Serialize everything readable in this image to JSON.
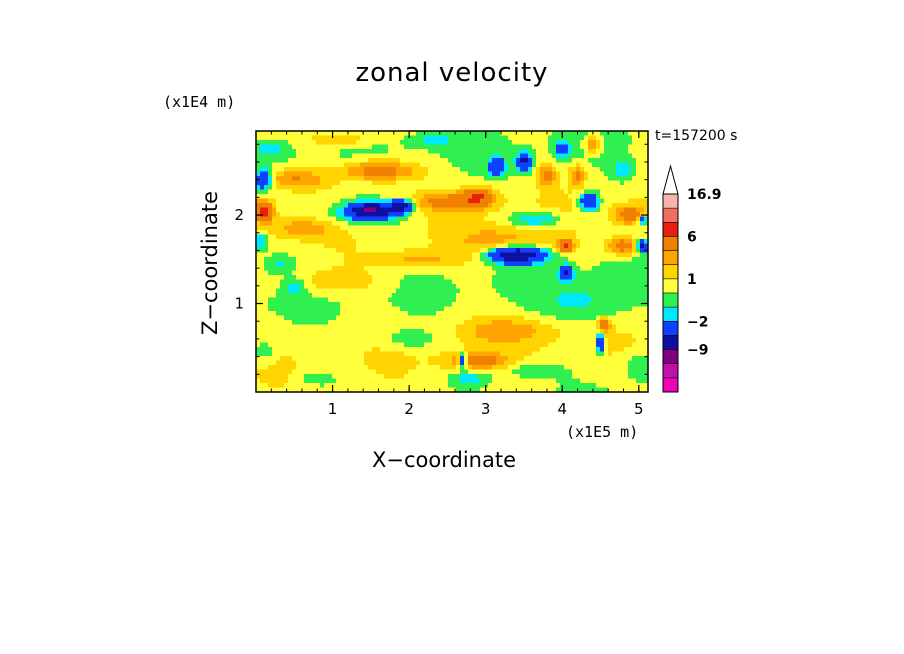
{
  "chart_data": {
    "type": "heatmap",
    "title": "zonal velocity",
    "xlabel": "X−coordinate",
    "ylabel": "Z−coordinate",
    "x_multiplier": "(x1E5 m)",
    "y_multiplier": "(x1E4 m)",
    "time_label": "t=157200 s",
    "xlim": [
      0,
      5.12
    ],
    "ylim": [
      0,
      2.95
    ],
    "x_ticks": [
      "1",
      "2",
      "3",
      "4",
      "5"
    ],
    "y_ticks": [
      "1",
      "2"
    ],
    "colorbar": {
      "max_label": "16.9",
      "tick_labels": [
        "16.9",
        "6",
        "1",
        "−2",
        "−9"
      ],
      "levels": [
        {
          "min": 12,
          "max": 16.9,
          "color": "#f8b4a8"
        },
        {
          "min": 9,
          "max": 12,
          "color": "#f07060"
        },
        {
          "min": 6,
          "max": 9,
          "color": "#e81e0e"
        },
        {
          "min": 3,
          "max": 6,
          "color": "#f08000"
        },
        {
          "min": 2,
          "max": 3,
          "color": "#ffa400"
        },
        {
          "min": 1,
          "max": 2,
          "color": "#ffd400"
        },
        {
          "min": 0,
          "max": 1,
          "color": "#ffff3c"
        },
        {
          "min": -1,
          "max": 0,
          "color": "#2ff050"
        },
        {
          "min": -2,
          "max": -1,
          "color": "#00e8ff"
        },
        {
          "min": -5,
          "max": -2,
          "color": "#1040ff"
        },
        {
          "min": -9,
          "max": -5,
          "color": "#1010a0"
        },
        {
          "min": -12,
          "max": -9,
          "color": "#800080"
        },
        {
          "min": -15,
          "max": -12,
          "color": "#c010b0"
        },
        {
          "min": -18,
          "max": -15,
          "color": "#f000b8"
        }
      ]
    },
    "field_features": [
      {
        "x": 0.1,
        "z": 2.05,
        "value": 7,
        "sx": 0.12,
        "sz": 0.12
      },
      {
        "x": 0.5,
        "z": 2.4,
        "value": 3,
        "sx": 0.45,
        "sz": 0.12
      },
      {
        "x": 1.6,
        "z": 2.5,
        "value": 4,
        "sx": 0.5,
        "sz": 0.12
      },
      {
        "x": 2.5,
        "z": 2.15,
        "value": 3,
        "sx": 0.5,
        "sz": 0.1
      },
      {
        "x": 0.6,
        "z": 1.85,
        "value": 2,
        "sx": 0.4,
        "sz": 0.1
      },
      {
        "x": 1.5,
        "z": 2.05,
        "value": -9,
        "sx": 0.28,
        "sz": 0.08
      },
      {
        "x": 1.9,
        "z": 2.1,
        "value": -7,
        "sx": 0.15,
        "sz": 0.07
      },
      {
        "x": 1.4,
        "z": 2.0,
        "value": -2,
        "sx": 0.55,
        "sz": 0.15
      },
      {
        "x": 0.1,
        "z": 2.4,
        "value": -6,
        "sx": 0.1,
        "sz": 0.1
      },
      {
        "x": 0.05,
        "z": 1.7,
        "value": -3,
        "sx": 0.1,
        "sz": 0.1
      },
      {
        "x": 0.5,
        "z": 1.2,
        "value": -2,
        "sx": 0.15,
        "sz": 0.1
      },
      {
        "x": 0.3,
        "z": 1.45,
        "value": -1.5,
        "sx": 0.2,
        "sz": 0.12
      },
      {
        "x": 0.2,
        "z": 2.75,
        "value": -1.5,
        "sx": 0.25,
        "sz": 0.1
      },
      {
        "x": 2.3,
        "z": 2.85,
        "value": -1.5,
        "sx": 0.3,
        "sz": 0.08
      },
      {
        "x": 1.1,
        "z": 2.85,
        "value": 2,
        "sx": 0.35,
        "sz": 0.08
      },
      {
        "x": 3.4,
        "z": 1.55,
        "value": -9,
        "sx": 0.35,
        "sz": 0.09
      },
      {
        "x": 3.2,
        "z": 1.7,
        "value": 2,
        "sx": 0.6,
        "sz": 0.18
      },
      {
        "x": 3.5,
        "z": 2.6,
        "value": -6,
        "sx": 0.1,
        "sz": 0.1
      },
      {
        "x": 3.15,
        "z": 2.55,
        "value": -5,
        "sx": 0.1,
        "sz": 0.1
      },
      {
        "x": 3.8,
        "z": 2.45,
        "value": 3,
        "sx": 0.12,
        "sz": 0.12
      },
      {
        "x": 4.0,
        "z": 2.75,
        "value": -3,
        "sx": 0.1,
        "sz": 0.1
      },
      {
        "x": 4.2,
        "z": 2.45,
        "value": 3,
        "sx": 0.1,
        "sz": 0.12
      },
      {
        "x": 4.4,
        "z": 2.8,
        "value": 3,
        "sx": 0.1,
        "sz": 0.1
      },
      {
        "x": 4.35,
        "z": 2.15,
        "value": -6,
        "sx": 0.12,
        "sz": 0.1
      },
      {
        "x": 4.8,
        "z": 2.5,
        "value": -2,
        "sx": 0.15,
        "sz": 0.12
      },
      {
        "x": 4.9,
        "z": 2.0,
        "value": 4,
        "sx": 0.2,
        "sz": 0.1
      },
      {
        "x": 4.8,
        "z": 1.65,
        "value": 4,
        "sx": 0.2,
        "sz": 0.1
      },
      {
        "x": 5.05,
        "z": 1.65,
        "value": -7,
        "sx": 0.07,
        "sz": 0.06
      },
      {
        "x": 5.05,
        "z": 1.95,
        "value": -5,
        "sx": 0.07,
        "sz": 0.06
      },
      {
        "x": 4.05,
        "z": 1.35,
        "value": -6,
        "sx": 0.08,
        "sz": 0.08
      },
      {
        "x": 4.05,
        "z": 1.65,
        "value": 6,
        "sx": 0.1,
        "sz": 0.07
      },
      {
        "x": 3.65,
        "z": 1.95,
        "value": -3,
        "sx": 0.35,
        "sz": 0.08
      },
      {
        "x": 2.9,
        "z": 2.2,
        "value": 5,
        "sx": 0.2,
        "sz": 0.1
      },
      {
        "x": 2.1,
        "z": 1.5,
        "value": 2,
        "sx": 0.6,
        "sz": 0.1
      },
      {
        "x": 1.0,
        "z": 1.25,
        "value": 1.5,
        "sx": 0.7,
        "sz": 0.15
      },
      {
        "x": 4.3,
        "z": 1.0,
        "value": -1.5,
        "sx": 0.6,
        "sz": 0.25
      },
      {
        "x": 3.3,
        "z": 0.7,
        "value": 2,
        "sx": 0.6,
        "sz": 0.15
      },
      {
        "x": 2.9,
        "z": 0.35,
        "value": 3,
        "sx": 0.4,
        "sz": 0.09
      },
      {
        "x": 2.8,
        "z": 0.15,
        "value": -2,
        "sx": 0.25,
        "sz": 0.08
      },
      {
        "x": 2.7,
        "z": 0.35,
        "value": -6,
        "sx": 0.05,
        "sz": 0.08
      },
      {
        "x": 4.5,
        "z": 0.55,
        "value": -7,
        "sx": 0.05,
        "sz": 0.1
      },
      {
        "x": 4.55,
        "z": 0.75,
        "value": 4,
        "sx": 0.08,
        "sz": 0.08
      },
      {
        "x": 0.8,
        "z": 0.15,
        "value": -1.5,
        "sx": 0.25,
        "sz": 0.08
      },
      {
        "x": 0.1,
        "z": 0.45,
        "value": -1.5,
        "sx": 0.15,
        "sz": 0.12
      },
      {
        "x": 2.0,
        "z": 0.6,
        "value": -1.5,
        "sx": 0.35,
        "sz": 0.1
      },
      {
        "x": 3.6,
        "z": 0.25,
        "value": -1.5,
        "sx": 0.4,
        "sz": 0.1
      },
      {
        "x": 5.0,
        "z": 0.3,
        "value": -1.5,
        "sx": 0.2,
        "sz": 0.15
      }
    ]
  }
}
